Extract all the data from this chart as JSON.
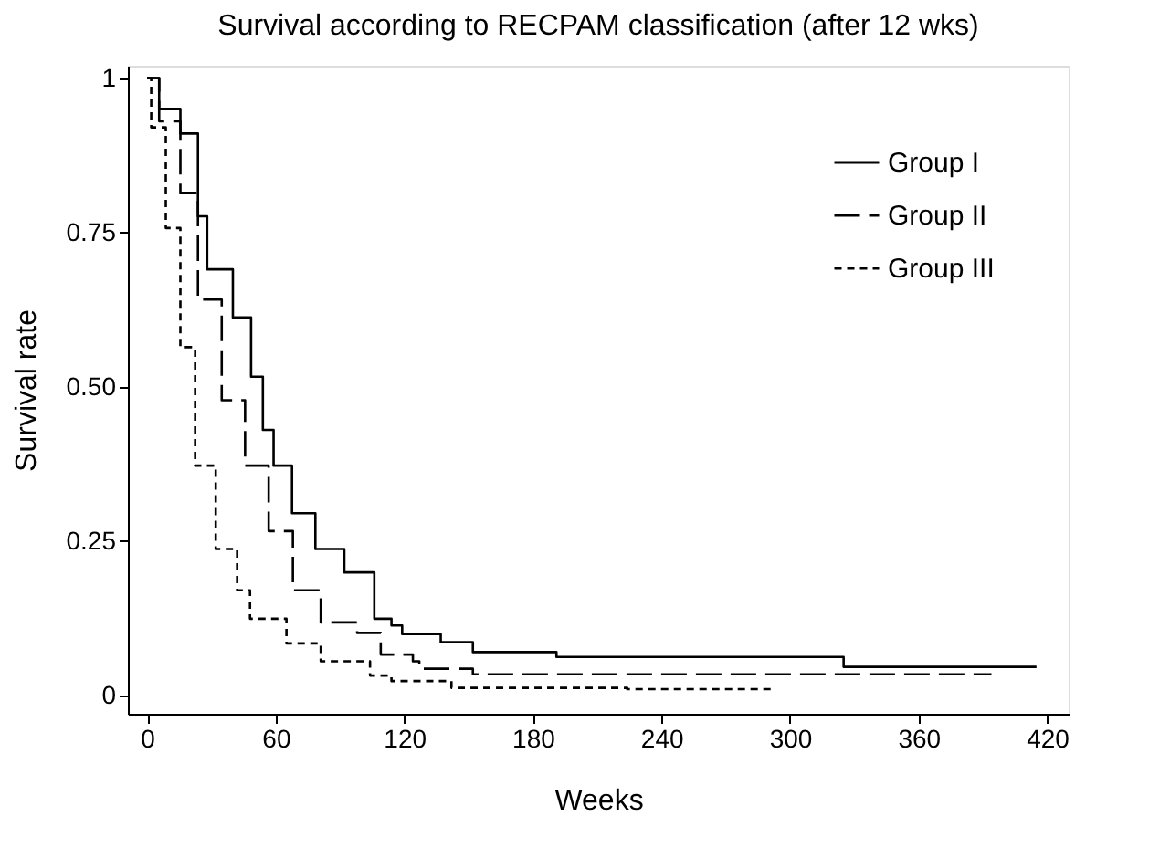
{
  "chart_data": {
    "type": "step",
    "title": "Survival according to RECPAM classification (after 12 wks)",
    "xlabel": "Weeks",
    "ylabel": "Survival rate",
    "xlim": [
      -9,
      430
    ],
    "ylim": [
      -0.03,
      1.02
    ],
    "xticks": [
      0,
      60,
      120,
      180,
      240,
      300,
      360,
      420
    ],
    "yticks": [
      0,
      0.25,
      {
        "value": 0.5,
        "label": "0.50"
      },
      0.75,
      1
    ],
    "grid": false,
    "legend": "top right",
    "series": [
      {
        "name": "Group I",
        "color": "#000000",
        "line_style": "solid",
        "x": [
          0,
          5.6,
          15.5,
          23.7,
          28,
          40,
          48.5,
          54,
          59,
          67.6,
          78.5,
          92,
          106,
          114,
          119,
          137,
          152,
          191,
          325,
          415
        ],
        "values": [
          1,
          0.95,
          0.91,
          0.776,
          0.69,
          0.612,
          0.516,
          0.43,
          0.372,
          0.295,
          0.237,
          0.199,
          0.124,
          0.113,
          0.099,
          0.086,
          0.07,
          0.062,
          0.046,
          0.046
        ]
      },
      {
        "name": "Group II",
        "color": "#000000",
        "line_style": "dashed",
        "x": [
          0,
          5.6,
          15.5,
          23.7,
          34.8,
          45.7,
          56.7,
          68,
          81,
          98,
          109,
          124,
          127,
          152,
          394
        ],
        "values": [
          1,
          0.93,
          0.814,
          0.641,
          0.478,
          0.372,
          0.266,
          0.17,
          0.118,
          0.101,
          0.066,
          0.055,
          0.043,
          0.034,
          0.034
        ]
      },
      {
        "name": "Group III",
        "color": "#000000",
        "line_style": "dotted",
        "x": [
          0,
          1.9,
          8.7,
          15.5,
          22.4,
          32,
          42,
          48,
          65,
          81,
          104,
          114,
          142,
          224,
          293
        ],
        "values": [
          1,
          0.92,
          0.757,
          0.564,
          0.372,
          0.237,
          0.17,
          0.124,
          0.084,
          0.055,
          0.032,
          0.023,
          0.012,
          0.01,
          0.01
        ]
      }
    ]
  }
}
